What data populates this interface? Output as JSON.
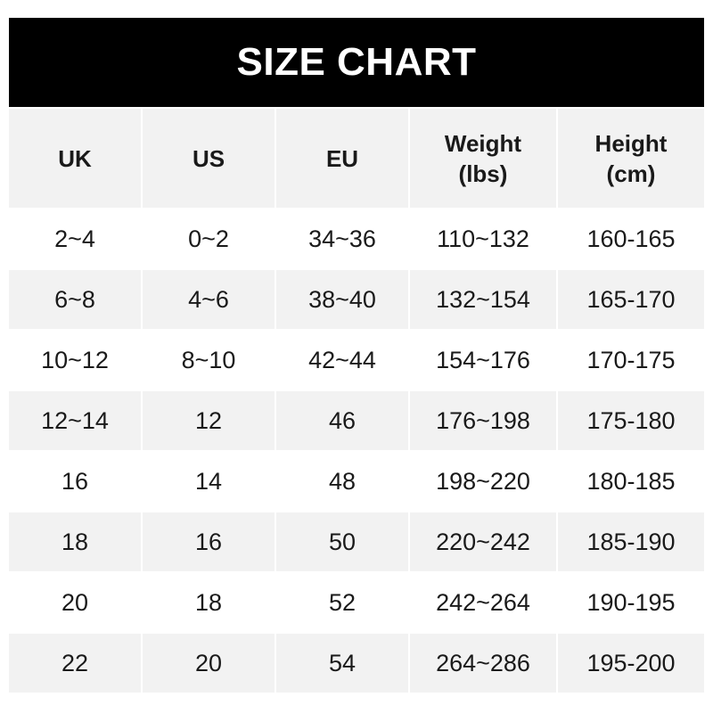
{
  "title": "SIZE CHART",
  "headers": [
    "UK",
    "US",
    "EU",
    "Weight\n(lbs)",
    "Height\n(cm)"
  ],
  "header_lines": [
    [
      "UK"
    ],
    [
      "US"
    ],
    [
      "EU"
    ],
    [
      "Weight",
      "(lbs)"
    ],
    [
      "Height",
      "(cm)"
    ]
  ],
  "rows": [
    [
      "2~4",
      "0~2",
      "34~36",
      "110~132",
      "160-165"
    ],
    [
      "6~8",
      "4~6",
      "38~40",
      "132~154",
      "165-170"
    ],
    [
      "10~12",
      "8~10",
      "42~44",
      "154~176",
      "170-175"
    ],
    [
      "12~14",
      "12",
      "46",
      "176~198",
      "175-180"
    ],
    [
      "16",
      "14",
      "48",
      "198~220",
      "180-185"
    ],
    [
      "18",
      "16",
      "50",
      "220~242",
      "185-190"
    ],
    [
      "20",
      "18",
      "52",
      "242~264",
      "190-195"
    ],
    [
      "22",
      "20",
      "54",
      "264~286",
      "195-200"
    ]
  ],
  "colors": {
    "banner": "#000000",
    "stripe": "#f2f2f2",
    "text": "#1a1a1a"
  }
}
